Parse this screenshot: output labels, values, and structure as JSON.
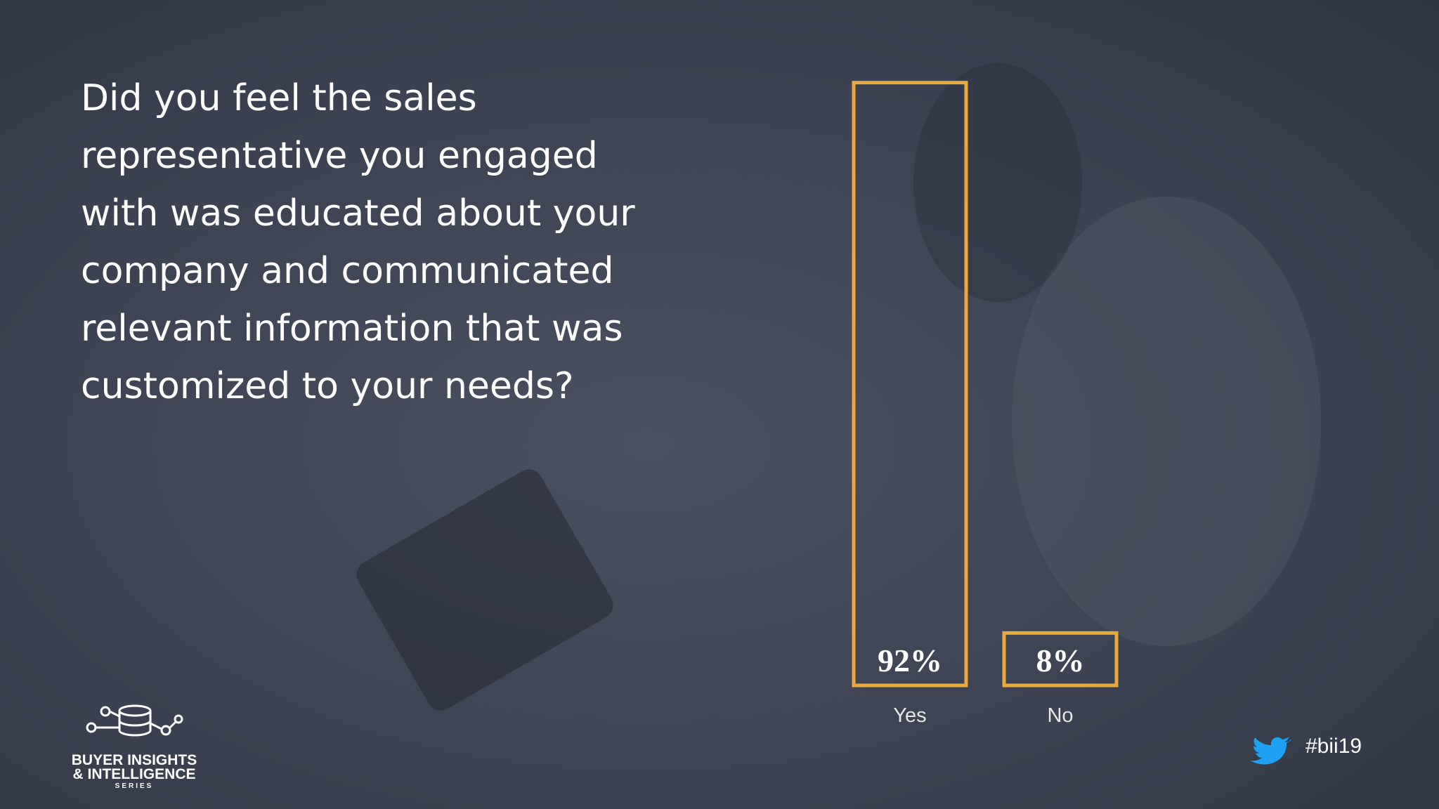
{
  "chart_data": {
    "type": "bar",
    "title": [
      "Did you feel the sales",
      "representative you engaged",
      "with was educated about your",
      "company and communicated",
      "relevant information that was",
      "customized to your needs?"
    ],
    "categories": [
      "Yes",
      "No"
    ],
    "values": [
      92,
      8
    ],
    "value_labels": [
      "92%",
      "8%"
    ],
    "color": "#e8aa3c"
  },
  "branding": {
    "logo_lines": [
      "BUYER INSIGHTS",
      "& INTELLIGENCE",
      "SERIES"
    ],
    "hashtag": "#bii19"
  }
}
